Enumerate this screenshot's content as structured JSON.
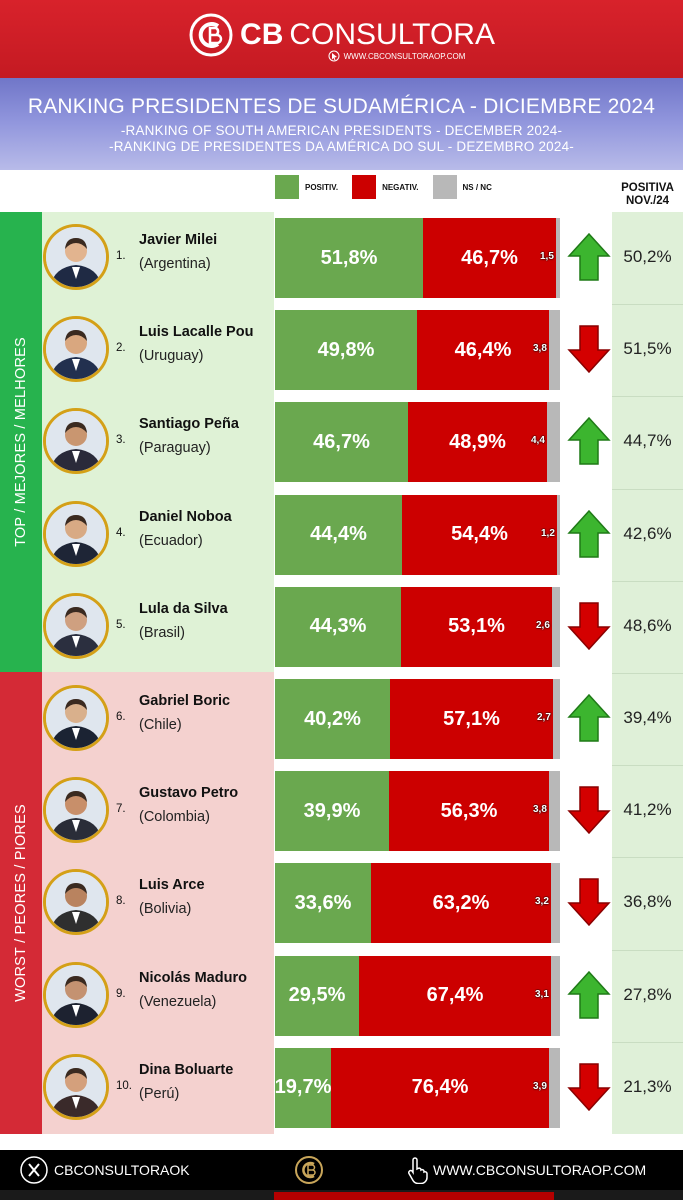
{
  "header": {
    "brand_cb": "CB",
    "brand_rest": "CONSULTORA",
    "url": "WWW.CBCONSULTORAOP.COM",
    "title": "RANKING PRESIDENTES DE SUDAMÉRICA - DICIEMBRE  2024",
    "subtitle_en": "-RANKING OF SOUTH AMERICAN PRESIDENTS - DECEMBER 2024-",
    "subtitle_pt": "-RANKING DE PRESIDENTES DA AMÉRICA DO SUL - DEZEMBRO 2024-"
  },
  "legend": {
    "positive": "POSITIV.",
    "negative": "NEGATIV.",
    "nsnc": "NS / NC"
  },
  "prev_header": {
    "line1": "POSITIVA",
    "line2": "NOV./24"
  },
  "side": {
    "top_label": "TOP / MEJORES / MELHORES",
    "bottom_label": "WORST / PEORES / PIORES"
  },
  "colors": {
    "positive": "#6aa84f",
    "negative": "#cc0000",
    "nsnc": "#b8b8b8",
    "top_zone": "#27b34e",
    "worst_zone": "#d42a36",
    "arrow_up": "#3cb52f",
    "arrow_down": "#d40000"
  },
  "chart_data": {
    "type": "bar",
    "stacked": true,
    "orientation": "horizontal",
    "title": "RANKING PRESIDENTES DE SUDAMÉRICA - DICIEMBRE  2024",
    "categories": [
      "Javier Milei",
      "Luis Lacalle Pou",
      "Santiago Peña",
      "Daniel Noboa",
      "Lula da Silva",
      "Gabriel Boric",
      "Gustavo Petro",
      "Luis Arce",
      "Nicolás Maduro",
      "Dina Boluarte"
    ],
    "series": [
      {
        "name": "POSITIV.",
        "values": [
          51.8,
          49.8,
          46.7,
          44.4,
          44.3,
          40.2,
          39.9,
          33.6,
          29.5,
          19.7
        ]
      },
      {
        "name": "NEGATIV.",
        "values": [
          46.7,
          46.4,
          48.9,
          54.4,
          53.1,
          57.1,
          56.3,
          63.2,
          67.4,
          76.4
        ]
      },
      {
        "name": "NS / NC",
        "values": [
          1.5,
          3.8,
          4.4,
          1.2,
          2.6,
          2.7,
          3.8,
          3.2,
          3.1,
          3.9
        ]
      }
    ],
    "rows": [
      {
        "rank": "1.",
        "name": "Javier Milei",
        "country": "(Argentina)",
        "pos": 51.8,
        "neg": 46.7,
        "ns": 1.5,
        "pos_label": "51,8%",
        "neg_label": "46,7%",
        "ns_label": "1,5",
        "prev": "50,2%",
        "trend": "up"
      },
      {
        "rank": "2.",
        "name": "Luis Lacalle Pou",
        "country": "(Uruguay)",
        "pos": 49.8,
        "neg": 46.4,
        "ns": 3.8,
        "pos_label": "49,8%",
        "neg_label": "46,4%",
        "ns_label": "3,8",
        "prev": "51,5%",
        "trend": "down"
      },
      {
        "rank": "3.",
        "name": "Santiago Peña",
        "country": "(Paraguay)",
        "pos": 46.7,
        "neg": 48.9,
        "ns": 4.4,
        "pos_label": "46,7%",
        "neg_label": "48,9%",
        "ns_label": "4,4",
        "prev": "44,7%",
        "trend": "up"
      },
      {
        "rank": "4.",
        "name": "Daniel Noboa",
        "country": "(Ecuador)",
        "pos": 44.4,
        "neg": 54.4,
        "ns": 1.2,
        "pos_label": "44,4%",
        "neg_label": "54,4%",
        "ns_label": "1,2",
        "prev": "42,6%",
        "trend": "up"
      },
      {
        "rank": "5.",
        "name": "Lula da Silva",
        "country": "(Brasil)",
        "pos": 44.3,
        "neg": 53.1,
        "ns": 2.6,
        "pos_label": "44,3%",
        "neg_label": "53,1%",
        "ns_label": "2,6",
        "prev": "48,6%",
        "trend": "down"
      },
      {
        "rank": "6.",
        "name": "Gabriel Boric",
        "country": "(Chile)",
        "pos": 40.2,
        "neg": 57.1,
        "ns": 2.7,
        "pos_label": "40,2%",
        "neg_label": "57,1%",
        "ns_label": "2,7",
        "prev": "39,4%",
        "trend": "up"
      },
      {
        "rank": "7.",
        "name": "Gustavo Petro",
        "country": "(Colombia)",
        "pos": 39.9,
        "neg": 56.3,
        "ns": 3.8,
        "pos_label": "39,9%",
        "neg_label": "56,3%",
        "ns_label": "3,8",
        "prev": "41,2%",
        "trend": "down"
      },
      {
        "rank": "8.",
        "name": "Luis Arce",
        "country": "(Bolivia)",
        "pos": 33.6,
        "neg": 63.2,
        "ns": 3.2,
        "pos_label": "33,6%",
        "neg_label": "63,2%",
        "ns_label": "3,2",
        "prev": "36,8%",
        "trend": "down"
      },
      {
        "rank": "9.",
        "name": "Nicolás Maduro",
        "country": "(Venezuela)",
        "pos": 29.5,
        "neg": 67.4,
        "ns": 3.1,
        "pos_label": "29,5%",
        "neg_label": "67,4%",
        "ns_label": "3,1",
        "prev": "27,8%",
        "trend": "up"
      },
      {
        "rank": "10.",
        "name": "Dina Boluarte",
        "country": "(Perú)",
        "pos": 19.7,
        "neg": 76.4,
        "ns": 3.9,
        "pos_label": "19,7%",
        "neg_label": "76,4%",
        "ns_label": "3,9",
        "prev": "21,3%",
        "trend": "down"
      }
    ]
  },
  "footer": {
    "handle": "CBCONSULTORAOK",
    "website": "WWW.CBCONSULTORAOP.COM"
  }
}
